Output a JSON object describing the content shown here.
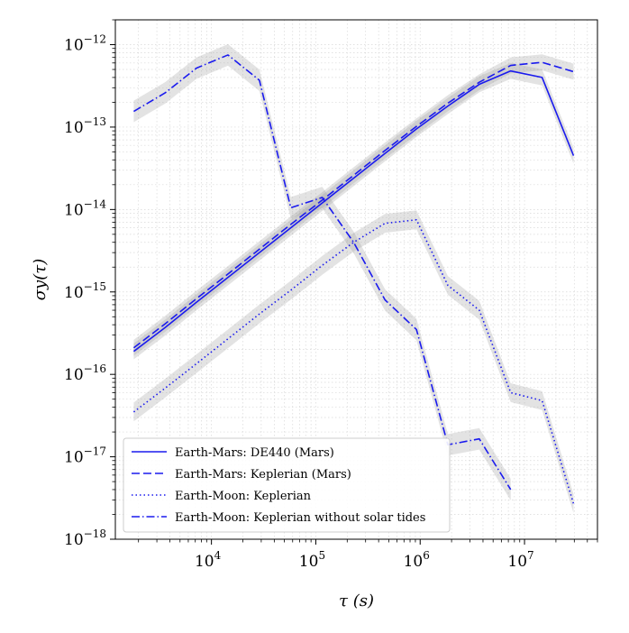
{
  "chart_data": {
    "type": "line",
    "xscale": "log",
    "yscale": "log",
    "xlabel": "τ (s)",
    "ylabel": "σy(τ)",
    "xlim": [
      1200,
      50000000
    ],
    "ylim": [
      1e-18,
      2e-12
    ],
    "grid": true,
    "legend_position": "lower-left",
    "x_ticks": [
      {
        "value": 10000,
        "base": "10",
        "exp": "4"
      },
      {
        "value": 100000,
        "base": "10",
        "exp": "5"
      },
      {
        "value": 1000000,
        "base": "10",
        "exp": "6"
      },
      {
        "value": 10000000,
        "base": "10",
        "exp": "7"
      }
    ],
    "y_ticks": [
      {
        "value": 1e-18,
        "base": "10",
        "exp": "−18"
      },
      {
        "value": 1e-17,
        "base": "10",
        "exp": "−17"
      },
      {
        "value": 1e-16,
        "base": "10",
        "exp": "−16"
      },
      {
        "value": 1e-15,
        "base": "10",
        "exp": "−15"
      },
      {
        "value": 1e-14,
        "base": "10",
        "exp": "−14"
      },
      {
        "value": 1e-13,
        "base": "10",
        "exp": "−13"
      },
      {
        "value": 1e-12,
        "base": "10",
        "exp": "−12"
      }
    ],
    "series": [
      {
        "name": "Earth-Mars: DE440 (Mars)",
        "style": "solid",
        "color": "#1a1aee",
        "band_factor": 1.25,
        "x": [
          1800,
          3600,
          7200,
          14400,
          28800,
          57600,
          115200,
          230400,
          460800,
          921600,
          1843200,
          3686400,
          7372800,
          14745600,
          29491200
        ],
        "y": [
          1.9e-16,
          3.7e-16,
          7.5e-16,
          1.5e-15,
          3e-15,
          6e-15,
          1.2e-14,
          2.4e-14,
          4.8e-14,
          9.5e-14,
          1.8e-13,
          3.3e-13,
          4.8e-13,
          4e-13,
          4.5e-14
        ]
      },
      {
        "name": "Earth-Mars: Keplerian (Mars)",
        "style": "dashed",
        "color": "#1a1aee",
        "band_factor": 1.25,
        "x": [
          1800,
          3600,
          7200,
          14400,
          28800,
          57600,
          115200,
          230400,
          460800,
          921600,
          1843200,
          3686400,
          7372800,
          14745600,
          29491200
        ],
        "y": [
          2.1e-16,
          4.1e-16,
          8.3e-16,
          1.65e-15,
          3.3e-15,
          6.6e-15,
          1.3e-14,
          2.6e-14,
          5.2e-14,
          1.02e-13,
          1.95e-13,
          3.5e-13,
          5.6e-13,
          6.1e-13,
          4.7e-13
        ]
      },
      {
        "name": "Earth-Moon: Keplerian",
        "style": "dotted",
        "color": "#1a1aee",
        "band_factor": 1.3,
        "x": [
          1800,
          3600,
          7200,
          14400,
          28800,
          57600,
          115200,
          230400,
          460800,
          921600,
          1843200,
          3686400,
          7372800,
          14745600,
          29491200
        ],
        "y": [
          3.5e-17,
          6.8e-17,
          1.35e-16,
          2.7e-16,
          5.4e-16,
          1.05e-15,
          2.1e-15,
          4e-15,
          6.8e-15,
          7.5e-15,
          1.2e-15,
          6e-16,
          6e-17,
          4.8e-17,
          2.7e-18
        ]
      },
      {
        "name": "Earth-Moon: Keplerian without solar tides",
        "style": "dashdot",
        "color": "#1a1aee",
        "band_factor": 1.35,
        "x": [
          1800,
          3600,
          7200,
          14400,
          28800,
          57600,
          115200,
          230400,
          460800,
          921600,
          1843200,
          3686400,
          7372800
        ],
        "y": [
          1.55e-13,
          2.6e-13,
          5.2e-13,
          7.5e-13,
          3.7e-13,
          1.05e-14,
          1.4e-14,
          4e-15,
          8e-16,
          3.5e-16,
          1.4e-17,
          1.65e-17,
          4e-18
        ]
      }
    ]
  }
}
